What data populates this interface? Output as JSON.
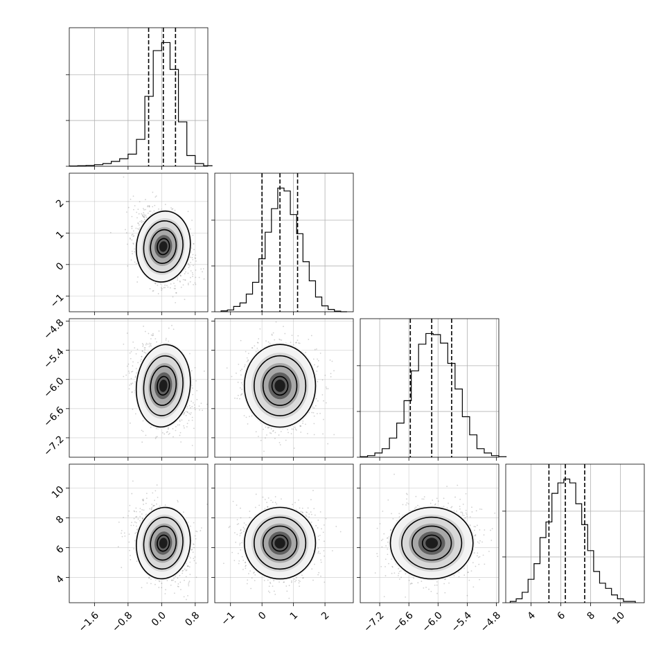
{
  "figure": {
    "background": "#ffffff",
    "parameter_count": 4,
    "style": "corner plot"
  },
  "chart_data": {
    "type": "corner",
    "parameters": [
      {
        "range": [
          -2.2,
          1.1
        ],
        "ticks": [
          -1.6,
          -0.8,
          0.0,
          0.8
        ],
        "tick_labels": [
          "−1.6",
          "−0.8",
          "0.0",
          "0.8"
        ],
        "quantiles": [
          -0.31,
          0.04,
          0.33
        ],
        "hist_bins": [
          -2.2,
          -2.0,
          -1.8,
          -1.6,
          -1.4,
          -1.2,
          -1.0,
          -0.8,
          -0.6,
          -0.4,
          -0.2,
          0.0,
          0.2,
          0.4,
          0.6,
          0.8,
          1.0
        ],
        "hist_counts": [
          1,
          2,
          3,
          6,
          10,
          18,
          28,
          45,
          100,
          260,
          430,
          460,
          360,
          165,
          40,
          10,
          2
        ]
      },
      {
        "range": [
          -1.5,
          2.9
        ],
        "ticks": [
          -1,
          0,
          1,
          2
        ],
        "tick_labels": [
          "−1",
          "0",
          "1",
          "2"
        ],
        "quantiles": [
          0.0,
          0.57,
          1.13
        ],
        "hist_bins": [
          -1.3,
          -1.1,
          -0.9,
          -0.7,
          -0.5,
          -0.3,
          -0.1,
          0.1,
          0.3,
          0.5,
          0.7,
          0.9,
          1.1,
          1.3,
          1.5,
          1.7,
          1.9,
          2.1,
          2.3,
          2.5
        ],
        "hist_counts": [
          3,
          6,
          18,
          30,
          60,
          100,
          180,
          270,
          350,
          420,
          410,
          330,
          265,
          170,
          105,
          50,
          20,
          8,
          2,
          0
        ]
      },
      {
        "range": [
          -7.6,
          -4.75
        ],
        "ticks": [
          -7.2,
          -6.6,
          -6.0,
          -5.4,
          -4.8
        ],
        "tick_labels": [
          "−7.2",
          "−6.6",
          "−6.0",
          "−5.4",
          "−4.8"
        ],
        "quantiles": [
          -6.57,
          -6.13,
          -5.72
        ],
        "hist_bins": [
          -7.6,
          -7.45,
          -7.3,
          -7.15,
          -7.0,
          -6.85,
          -6.7,
          -6.55,
          -6.4,
          -6.25,
          -6.1,
          -5.95,
          -5.8,
          -5.65,
          -5.5,
          -5.35,
          -5.2,
          -5.05,
          -4.9,
          -4.75
        ],
        "hist_counts": [
          2,
          6,
          16,
          32,
          72,
          128,
          212,
          324,
          424,
          464,
          460,
          428,
          352,
          256,
          152,
          84,
          32,
          16,
          6,
          2
        ]
      },
      {
        "range": [
          2.3,
          11.6
        ],
        "ticks": [
          4,
          6,
          8,
          10
        ],
        "tick_labels": [
          "4",
          "6",
          "8",
          "10"
        ],
        "quantiles": [
          5.2,
          6.3,
          7.6
        ],
        "hist_bins": [
          2.6,
          3.0,
          3.4,
          3.8,
          4.2,
          4.6,
          5.0,
          5.4,
          5.8,
          6.2,
          6.6,
          7.0,
          7.4,
          7.8,
          8.2,
          8.6,
          9.0,
          9.4,
          9.8,
          10.2,
          10.6,
          11.0
        ],
        "hist_counts": [
          5,
          15,
          40,
          90,
          150,
          250,
          310,
          420,
          460,
          475,
          460,
          380,
          300,
          200,
          120,
          75,
          55,
          30,
          15,
          5,
          5
        ]
      }
    ],
    "diagonal": "1D histograms (step), dashed lines at 16th/50th/84th percentiles",
    "off_diagonal": "2D density: scatter of samples, shaded density, 4 contour levels",
    "pair_correlations": [
      {
        "row": 1,
        "col": 0,
        "rho": -0.3
      },
      {
        "row": 2,
        "col": 0,
        "rho": -0.2
      },
      {
        "row": 2,
        "col": 1,
        "rho": 0.0
      },
      {
        "row": 3,
        "col": 0,
        "rho": -0.25
      },
      {
        "row": 3,
        "col": 1,
        "rho": 0.0
      },
      {
        "row": 3,
        "col": 2,
        "rho": 0.0
      }
    ],
    "grid": true,
    "xlabel": "",
    "ylabel": ""
  }
}
